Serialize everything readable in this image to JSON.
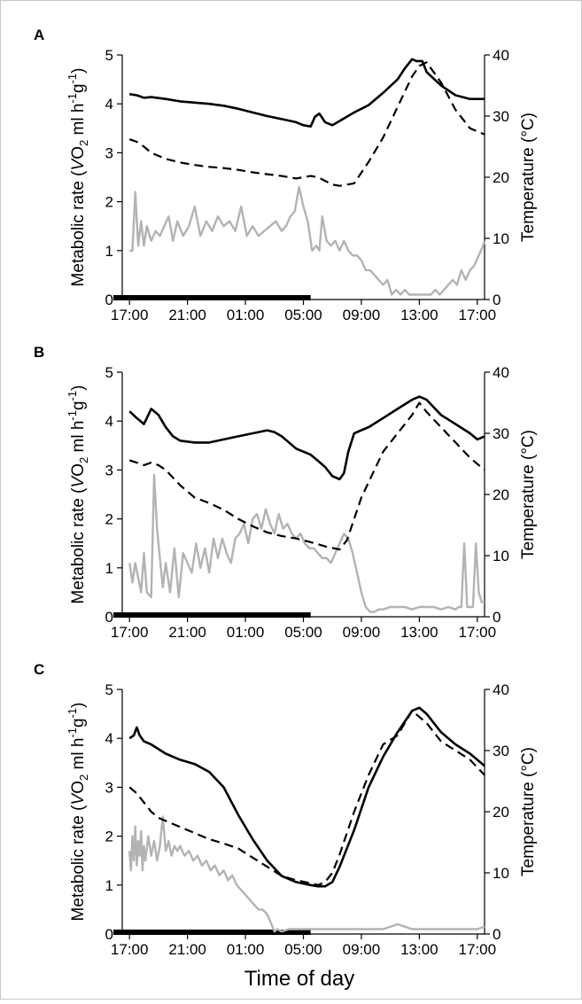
{
  "figure": {
    "xlabel": "Time of day"
  },
  "chart_data": [
    {
      "type": "line",
      "panel_label": "A",
      "ylabel": "Metabolic rate (",
      "ylabel_sym": "V",
      "ylabel_o": "O",
      "ylabel_sub": "2",
      "ylabel_tail": " ml h",
      "ylabel_sup1": "-1",
      "ylabel_g": "g",
      "ylabel_sup2": "-1",
      "ylabel_close": ")",
      "y2label": "Temperature (°C)",
      "ylim": [
        0,
        5
      ],
      "y2lim": [
        0,
        40
      ],
      "yticks": [
        "0",
        "1",
        "2",
        "3",
        "4",
        "5"
      ],
      "y2ticks": [
        "0",
        "10",
        "20",
        "30",
        "40"
      ],
      "xlim": [
        17,
        42
      ],
      "xticks": [
        "17:00",
        "21:00",
        "01:00",
        "05:00",
        "09:00",
        "13:00",
        "17:00"
      ],
      "night_bar": [
        17,
        30
      ],
      "series": [
        {
          "axis": "right",
          "style": "solid",
          "x": [
            17.5,
            18.0,
            18.5,
            19.0,
            20.0,
            21.0,
            22.0,
            23.0,
            24.0,
            25.0,
            26.0,
            27.0,
            28.0,
            29.0,
            29.5,
            30.0,
            30.3,
            30.6,
            31.0,
            31.5,
            32.0,
            33.0,
            34.0,
            35.0,
            36.0,
            36.5,
            37.0,
            37.3,
            37.7,
            38.0,
            39.0,
            40.0,
            41.0,
            42.0
          ],
          "values": [
            33.6,
            33.4,
            33.0,
            33.1,
            32.8,
            32.4,
            32.2,
            32.0,
            31.7,
            31.2,
            30.6,
            30.0,
            29.5,
            29.0,
            28.5,
            28.3,
            29.9,
            30.4,
            29.0,
            28.5,
            29.2,
            30.6,
            31.8,
            33.8,
            36.0,
            37.8,
            39.3,
            39.0,
            39.0,
            37.2,
            35.0,
            33.4,
            32.8,
            32.8
          ]
        },
        {
          "axis": "right",
          "style": "dashed",
          "x": [
            17.5,
            18.0,
            18.5,
            19.0,
            20.0,
            21.0,
            22.0,
            23.0,
            24.0,
            25.0,
            26.0,
            27.0,
            28.0,
            29.0,
            29.5,
            30.0,
            30.5,
            31.0,
            31.5,
            32.0,
            33.0,
            34.0,
            35.0,
            36.0,
            37.0,
            37.5,
            38.0,
            39.0,
            40.0,
            41.0,
            42.0
          ],
          "values": [
            26.2,
            25.8,
            25.0,
            24.0,
            23.0,
            22.4,
            22.0,
            21.7,
            21.5,
            21.2,
            20.8,
            20.5,
            20.2,
            19.8,
            20.0,
            20.2,
            20.0,
            19.4,
            18.8,
            18.6,
            19.0,
            22.5,
            26.5,
            31.5,
            36.5,
            38.2,
            38.8,
            35.5,
            31.0,
            28.0,
            27.0
          ]
        },
        {
          "axis": "left",
          "style": "gray",
          "x": [
            17.5,
            17.7,
            17.9,
            18.1,
            18.3,
            18.5,
            18.7,
            19.0,
            19.3,
            19.6,
            19.9,
            20.2,
            20.5,
            20.8,
            21.2,
            21.6,
            22.0,
            22.4,
            22.8,
            23.2,
            23.6,
            24.0,
            24.4,
            24.8,
            25.2,
            25.6,
            26.0,
            26.4,
            26.8,
            27.2,
            27.6,
            28.0,
            28.3,
            28.6,
            28.9,
            29.2,
            29.5,
            29.8,
            30.1,
            30.4,
            30.6,
            30.8,
            31.1,
            31.4,
            31.7,
            32.0,
            32.3,
            32.6,
            32.9,
            33.2,
            33.5,
            33.8,
            34.1,
            34.4,
            34.7,
            35.0,
            35.3,
            35.6,
            35.9,
            36.2,
            36.5,
            36.8,
            37.1,
            37.4,
            37.7,
            38.0,
            38.3,
            38.6,
            38.9,
            39.2,
            39.5,
            39.8,
            40.1,
            40.4,
            40.7,
            41.0,
            41.3,
            41.6,
            41.9,
            42.0
          ],
          "values": [
            1.0,
            1.0,
            2.2,
            1.1,
            1.6,
            1.1,
            1.5,
            1.2,
            1.4,
            1.3,
            1.5,
            1.7,
            1.2,
            1.6,
            1.3,
            1.5,
            1.9,
            1.3,
            1.6,
            1.4,
            1.7,
            1.5,
            1.6,
            1.4,
            1.9,
            1.3,
            1.5,
            1.3,
            1.4,
            1.5,
            1.6,
            1.4,
            1.5,
            1.7,
            1.8,
            2.3,
            1.9,
            1.6,
            1.0,
            1.1,
            1.0,
            1.7,
            1.2,
            1.1,
            1.2,
            1.0,
            1.2,
            1.0,
            0.9,
            0.9,
            0.8,
            0.6,
            0.6,
            0.5,
            0.4,
            0.3,
            0.4,
            0.1,
            0.2,
            0.1,
            0.2,
            0.1,
            0.1,
            0.1,
            0.1,
            0.1,
            0.1,
            0.2,
            0.1,
            0.2,
            0.3,
            0.4,
            0.3,
            0.6,
            0.4,
            0.6,
            0.7,
            0.9,
            1.1,
            1.2
          ]
        }
      ]
    },
    {
      "type": "line",
      "panel_label": "B",
      "ylabel": "Metabolic rate (",
      "ylabel_sym": "V",
      "ylabel_o": "O",
      "ylabel_sub": "2",
      "ylabel_tail": " ml h",
      "ylabel_sup1": "-1",
      "ylabel_g": "g",
      "ylabel_sup2": "-1",
      "ylabel_close": ")",
      "y2label": "Temperature (°C)",
      "ylim": [
        0,
        5
      ],
      "y2lim": [
        0,
        40
      ],
      "yticks": [
        "0",
        "1",
        "2",
        "3",
        "4",
        "5"
      ],
      "y2ticks": [
        "0",
        "10",
        "20",
        "30",
        "40"
      ],
      "xlim": [
        17,
        42
      ],
      "xticks": [
        "17:00",
        "21:00",
        "01:00",
        "05:00",
        "09:00",
        "13:00",
        "17:00"
      ],
      "night_bar": [
        17,
        30
      ],
      "series": [
        {
          "axis": "right",
          "style": "solid",
          "x": [
            17.5,
            18.0,
            18.5,
            19.0,
            19.5,
            20.0,
            20.5,
            21.0,
            22.0,
            23.0,
            24.0,
            25.0,
            26.0,
            27.0,
            27.5,
            28.0,
            29.0,
            30.0,
            30.5,
            31.0,
            31.5,
            32.0,
            32.3,
            32.6,
            33.0,
            34.0,
            35.0,
            36.0,
            37.0,
            37.5,
            38.0,
            39.0,
            40.0,
            41.0,
            41.5,
            42.0
          ],
          "values": [
            33.6,
            32.5,
            31.5,
            34.0,
            33.0,
            31.0,
            29.5,
            28.8,
            28.5,
            28.5,
            29.0,
            29.5,
            30.0,
            30.5,
            30.2,
            29.5,
            27.5,
            26.5,
            25.5,
            24.5,
            23.0,
            22.5,
            23.5,
            27.0,
            30.0,
            31.0,
            32.5,
            34.0,
            35.5,
            36.0,
            35.5,
            33.0,
            31.5,
            30.0,
            29.0,
            29.5
          ]
        },
        {
          "axis": "right",
          "style": "dashed",
          "x": [
            17.5,
            18.0,
            18.5,
            19.0,
            19.5,
            20.0,
            21.0,
            22.0,
            23.0,
            24.0,
            25.0,
            26.0,
            27.0,
            28.0,
            29.0,
            30.0,
            31.0,
            32.0,
            32.5,
            33.0,
            33.5,
            34.0,
            35.0,
            36.0,
            37.0,
            37.5,
            38.0,
            39.0,
            40.0,
            41.0,
            42.0
          ],
          "values": [
            25.6,
            25.2,
            24.8,
            25.2,
            24.8,
            24.0,
            21.5,
            19.5,
            18.6,
            17.5,
            16.0,
            14.8,
            13.8,
            13.2,
            12.8,
            12.2,
            11.5,
            11.0,
            12.5,
            16.0,
            19.5,
            22.0,
            27.0,
            30.0,
            33.0,
            35.0,
            33.5,
            31.0,
            28.5,
            26.0,
            24.0
          ]
        },
        {
          "axis": "left",
          "style": "gray",
          "x": [
            17.5,
            17.7,
            17.9,
            18.1,
            18.3,
            18.5,
            18.7,
            19.0,
            19.2,
            19.4,
            19.6,
            19.8,
            20.0,
            20.3,
            20.6,
            20.9,
            21.2,
            21.5,
            21.8,
            22.1,
            22.4,
            22.7,
            23.0,
            23.3,
            23.6,
            23.9,
            24.2,
            24.5,
            24.8,
            25.1,
            25.4,
            25.7,
            26.0,
            26.3,
            26.6,
            26.9,
            27.2,
            27.5,
            27.8,
            28.1,
            28.4,
            28.7,
            29.0,
            29.3,
            29.6,
            29.9,
            30.2,
            30.5,
            30.8,
            31.1,
            31.4,
            31.7,
            32.0,
            32.3,
            32.6,
            32.9,
            33.2,
            33.5,
            33.8,
            34.1,
            34.4,
            34.7,
            35.0,
            35.5,
            36.0,
            36.5,
            37.0,
            37.5,
            38.0,
            38.5,
            39.0,
            39.5,
            40.0,
            40.2,
            40.4,
            40.6,
            40.8,
            41.0,
            41.2,
            41.4,
            41.6,
            41.8,
            42.0
          ],
          "values": [
            1.1,
            0.7,
            1.1,
            0.8,
            0.5,
            1.3,
            0.5,
            0.4,
            2.9,
            1.8,
            1.2,
            0.6,
            1.1,
            0.5,
            1.4,
            0.4,
            1.3,
            1.1,
            0.9,
            1.5,
            1.0,
            1.4,
            0.9,
            1.6,
            1.2,
            1.6,
            1.3,
            1.1,
            1.6,
            1.7,
            1.9,
            1.5,
            2.0,
            2.1,
            1.8,
            2.2,
            1.9,
            1.7,
            2.1,
            1.8,
            1.9,
            1.7,
            1.6,
            1.7,
            1.5,
            1.4,
            1.4,
            1.3,
            1.2,
            1.2,
            1.1,
            1.3,
            1.5,
            1.7,
            1.6,
            1.3,
            0.9,
            0.5,
            0.2,
            0.1,
            0.1,
            0.15,
            0.15,
            0.2,
            0.2,
            0.2,
            0.15,
            0.2,
            0.2,
            0.2,
            0.15,
            0.2,
            0.15,
            0.2,
            0.2,
            1.5,
            0.2,
            0.2,
            0.2,
            1.5,
            0.5,
            0.3,
            0.3
          ]
        }
      ]
    },
    {
      "type": "line",
      "panel_label": "C",
      "ylabel": "Metabolic rate (",
      "ylabel_sym": "V",
      "ylabel_o": "O",
      "ylabel_sub": "2",
      "ylabel_tail": " ml h",
      "ylabel_sup1": "-1",
      "ylabel_g": "g",
      "ylabel_sup2": "-1",
      "ylabel_close": ")",
      "y2label": "Temperature (°C)",
      "ylim": [
        0,
        5
      ],
      "y2lim": [
        0,
        40
      ],
      "yticks": [
        "0",
        "1",
        "2",
        "3",
        "4",
        "5"
      ],
      "y2ticks": [
        "0",
        "10",
        "20",
        "30",
        "40"
      ],
      "xlim": [
        17,
        42
      ],
      "xticks": [
        "17:00",
        "21:00",
        "01:00",
        "05:00",
        "09:00",
        "13:00",
        "17:00"
      ],
      "night_bar": [
        17,
        30
      ],
      "series": [
        {
          "axis": "right",
          "style": "solid",
          "x": [
            17.5,
            17.8,
            18.0,
            18.2,
            18.5,
            19.0,
            20.0,
            21.0,
            22.0,
            23.0,
            24.0,
            25.0,
            26.0,
            27.0,
            28.0,
            29.0,
            30.0,
            30.5,
            31.0,
            31.5,
            32.0,
            33.0,
            34.0,
            35.0,
            36.0,
            37.0,
            37.5,
            38.0,
            39.0,
            40.0,
            41.0,
            42.0
          ],
          "values": [
            32.0,
            32.5,
            33.8,
            32.5,
            31.5,
            31.0,
            29.5,
            28.5,
            27.8,
            26.5,
            24.0,
            19.5,
            15.5,
            12.0,
            9.5,
            8.5,
            8.0,
            7.8,
            7.8,
            8.5,
            11.0,
            17.0,
            24.0,
            29.0,
            33.0,
            36.5,
            37.0,
            36.0,
            33.0,
            31.0,
            29.5,
            27.5
          ]
        },
        {
          "axis": "right",
          "style": "dashed",
          "x": [
            17.5,
            18.0,
            18.5,
            19.0,
            19.5,
            20.0,
            21.0,
            22.0,
            23.0,
            24.0,
            25.0,
            26.0,
            27.0,
            28.0,
            29.0,
            30.0,
            30.5,
            31.0,
            31.5,
            32.0,
            33.0,
            34.0,
            35.0,
            36.0,
            37.0,
            38.0,
            39.0,
            40.0,
            41.0,
            42.0
          ],
          "values": [
            24.0,
            23.0,
            21.5,
            20.0,
            19.0,
            18.5,
            17.5,
            16.5,
            15.5,
            14.8,
            14.0,
            12.5,
            11.0,
            9.5,
            8.8,
            8.3,
            8.0,
            8.5,
            10.0,
            13.0,
            20.0,
            26.0,
            31.0,
            32.5,
            36.5,
            34.5,
            31.5,
            30.0,
            28.5,
            26.0
          ]
        },
        {
          "axis": "left",
          "style": "gray",
          "x": [
            17.5,
            17.6,
            17.7,
            17.8,
            17.9,
            18.0,
            18.1,
            18.2,
            18.3,
            18.4,
            18.5,
            18.6,
            18.8,
            19.0,
            19.2,
            19.4,
            19.6,
            19.8,
            20.0,
            20.2,
            20.4,
            20.6,
            20.8,
            21.0,
            21.3,
            21.6,
            21.9,
            22.2,
            22.5,
            22.8,
            23.1,
            23.4,
            23.7,
            24.0,
            24.3,
            24.6,
            24.9,
            25.2,
            25.5,
            25.8,
            26.1,
            26.4,
            26.7,
            27.0,
            27.3,
            27.5,
            27.7,
            28.0,
            28.5,
            29.0,
            30.0,
            31.0,
            32.0,
            33.0,
            34.0,
            35.0,
            35.5,
            36.0,
            36.5,
            37.0,
            38.0,
            39.0,
            40.0,
            41.0,
            41.5,
            42.0
          ],
          "values": [
            1.7,
            1.3,
            2.0,
            1.5,
            2.2,
            1.4,
            1.9,
            1.6,
            2.1,
            1.3,
            1.8,
            1.5,
            2.0,
            1.6,
            1.9,
            1.5,
            1.8,
            2.4,
            1.7,
            1.9,
            1.6,
            1.8,
            1.7,
            1.8,
            1.6,
            1.7,
            1.5,
            1.6,
            1.4,
            1.5,
            1.3,
            1.4,
            1.2,
            1.3,
            1.1,
            1.2,
            1.0,
            0.9,
            0.8,
            0.7,
            0.6,
            0.5,
            0.5,
            0.4,
            0.2,
            0.05,
            0.1,
            0.05,
            0.1,
            0.1,
            0.1,
            0.1,
            0.1,
            0.1,
            0.1,
            0.1,
            0.15,
            0.2,
            0.15,
            0.1,
            0.1,
            0.1,
            0.1,
            0.1,
            0.1,
            0.15
          ]
        }
      ]
    }
  ]
}
